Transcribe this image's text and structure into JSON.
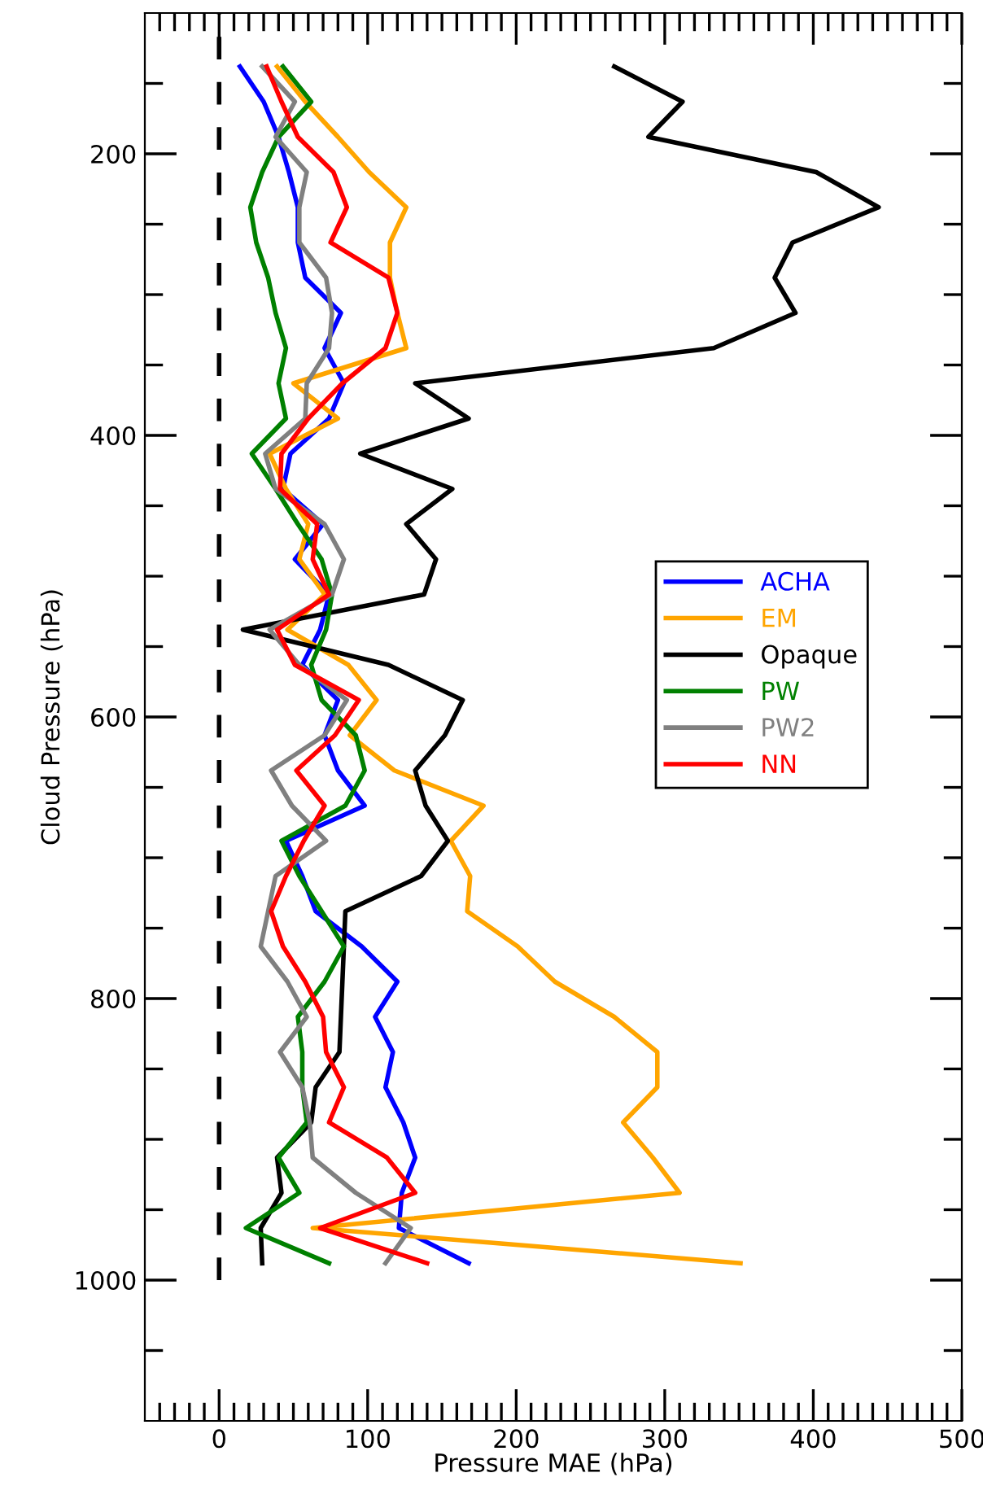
{
  "chart_data": {
    "type": "line",
    "xlabel": "Pressure MAE (hPa)",
    "ylabel": "Cloud Pressure (hPa)",
    "xlim": [
      -50,
      500
    ],
    "ylim": [
      1100,
      100
    ],
    "xticks": [
      {
        "value": -40,
        "label": null
      },
      {
        "value": -30,
        "label": null
      },
      {
        "value": -20,
        "label": null
      },
      {
        "value": -10,
        "label": null
      },
      0,
      {
        "value": 10,
        "label": null
      },
      {
        "value": 20,
        "label": null
      },
      {
        "value": 30,
        "label": null
      },
      {
        "value": 40,
        "label": null
      },
      {
        "value": 50,
        "label": null
      },
      {
        "value": 60,
        "label": null
      },
      {
        "value": 70,
        "label": null
      },
      {
        "value": 80,
        "label": null
      },
      {
        "value": 90,
        "label": null
      },
      100,
      {
        "value": 110,
        "label": null
      },
      {
        "value": 120,
        "label": null
      },
      {
        "value": 130,
        "label": null
      },
      {
        "value": 140,
        "label": null
      },
      {
        "value": 150,
        "label": null
      },
      {
        "value": 160,
        "label": null
      },
      {
        "value": 170,
        "label": null
      },
      {
        "value": 180,
        "label": null
      },
      {
        "value": 190,
        "label": null
      },
      200,
      {
        "value": 210,
        "label": null
      },
      {
        "value": 220,
        "label": null
      },
      {
        "value": 230,
        "label": null
      },
      {
        "value": 240,
        "label": null
      },
      {
        "value": 250,
        "label": null
      },
      {
        "value": 260,
        "label": null
      },
      {
        "value": 270,
        "label": null
      },
      {
        "value": 280,
        "label": null
      },
      {
        "value": 290,
        "label": null
      },
      300,
      {
        "value": 310,
        "label": null
      },
      {
        "value": 320,
        "label": null
      },
      {
        "value": 330,
        "label": null
      },
      {
        "value": 340,
        "label": null
      },
      {
        "value": 350,
        "label": null
      },
      {
        "value": 360,
        "label": null
      },
      {
        "value": 370,
        "label": null
      },
      {
        "value": 380,
        "label": null
      },
      {
        "value": 390,
        "label": null
      },
      400,
      {
        "value": 410,
        "label": null
      },
      {
        "value": 420,
        "label": null
      },
      {
        "value": 430,
        "label": null
      },
      {
        "value": 440,
        "label": null
      },
      {
        "value": 450,
        "label": null
      },
      {
        "value": 460,
        "label": null
      },
      {
        "value": 470,
        "label": null
      },
      {
        "value": 480,
        "label": null
      },
      {
        "value": 490,
        "label": null
      },
      500
    ],
    "yticks": [
      {
        "value": 150,
        "label": null
      },
      200,
      {
        "value": 250,
        "label": null
      },
      {
        "value": 300,
        "label": null
      },
      {
        "value": 350,
        "label": null
      },
      400,
      {
        "value": 450,
        "label": null
      },
      {
        "value": 500,
        "label": null
      },
      {
        "value": 550,
        "label": null
      },
      600,
      {
        "value": 650,
        "label": null
      },
      {
        "value": 700,
        "label": null
      },
      {
        "value": 750,
        "label": null
      },
      800,
      {
        "value": 850,
        "label": null
      },
      {
        "value": 900,
        "label": null
      },
      {
        "value": 950,
        "label": null
      },
      1000,
      {
        "value": 1050,
        "label": null
      }
    ],
    "legend": "center right",
    "ref_lines": [
      {
        "axis": "x",
        "value": 0,
        "color": "#000000",
        "line_style": "dashed"
      }
    ],
    "series": [
      {
        "name": "ACHA",
        "color": "#0000ff",
        "x": [
          14,
          30,
          40,
          47,
          53,
          53,
          58,
          82,
          71,
          84,
          74,
          48,
          43,
          70,
          51,
          74,
          68,
          56,
          80,
          71,
          80,
          98,
          45,
          56,
          65,
          96,
          120,
          105,
          117,
          112,
          124,
          132,
          123,
          121,
          168
        ],
        "values": [
          138,
          163,
          188,
          213,
          238,
          263,
          288,
          313,
          338,
          363,
          388,
          413,
          438,
          463,
          488,
          513,
          538,
          563,
          588,
          613,
          638,
          663,
          688,
          713,
          738,
          763,
          788,
          813,
          838,
          863,
          888,
          913,
          938,
          963,
          988
        ]
      },
      {
        "name": "EM",
        "color": "#ffa500",
        "x": [
          39,
          58,
          80,
          101,
          126,
          115,
          115,
          120,
          126,
          50,
          80,
          34,
          45,
          60,
          54,
          71,
          46,
          87,
          106,
          88,
          118,
          178,
          156,
          169,
          167,
          201,
          226,
          266,
          295,
          295,
          272,
          292,
          310,
          63,
          351
        ],
        "values": [
          138,
          163,
          188,
          213,
          238,
          263,
          288,
          313,
          338,
          363,
          388,
          413,
          438,
          463,
          488,
          513,
          538,
          563,
          588,
          613,
          638,
          663,
          688,
          713,
          738,
          763,
          788,
          813,
          838,
          863,
          888,
          913,
          938,
          963,
          988
        ]
      },
      {
        "name": "Opaque",
        "color": "#000000",
        "x": [
          266,
          312,
          289,
          402,
          444,
          386,
          374,
          388,
          333,
          132,
          168,
          95,
          157,
          126,
          146,
          138,
          16,
          114,
          164,
          152,
          132,
          139,
          154,
          136,
          85,
          84,
          83,
          82,
          81,
          65,
          62,
          39,
          42,
          28,
          29
        ],
        "values": [
          138,
          163,
          188,
          213,
          238,
          263,
          288,
          313,
          338,
          363,
          388,
          413,
          438,
          463,
          488,
          513,
          538,
          563,
          588,
          613,
          638,
          663,
          688,
          713,
          738,
          763,
          788,
          813,
          838,
          863,
          888,
          913,
          938,
          963,
          988
        ]
      },
      {
        "name": "PW",
        "color": "#008000",
        "x": [
          43,
          62,
          40,
          29,
          21,
          25,
          33,
          38,
          45,
          40,
          45,
          22,
          38,
          53,
          69,
          76,
          72,
          62,
          69,
          92,
          98,
          85,
          42,
          54,
          69,
          84,
          71,
          53,
          56,
          56,
          59,
          40,
          54,
          18,
          74
        ],
        "values": [
          138,
          163,
          188,
          213,
          238,
          263,
          288,
          313,
          338,
          363,
          388,
          413,
          438,
          463,
          488,
          513,
          538,
          563,
          588,
          613,
          638,
          663,
          688,
          713,
          738,
          763,
          788,
          813,
          838,
          863,
          888,
          913,
          938,
          963,
          988
        ]
      },
      {
        "name": "PW2",
        "color": "#808080",
        "x": [
          29,
          51,
          38,
          59,
          54,
          54,
          72,
          76,
          74,
          59,
          58,
          31,
          38,
          71,
          84,
          76,
          34,
          54,
          86,
          71,
          35,
          49,
          72,
          38,
          33,
          28,
          46,
          59,
          41,
          56,
          61,
          63,
          92,
          129,
          112
        ],
        "values": [
          138,
          163,
          188,
          213,
          238,
          263,
          288,
          313,
          338,
          363,
          388,
          413,
          438,
          463,
          488,
          513,
          538,
          563,
          588,
          613,
          638,
          663,
          688,
          713,
          738,
          763,
          788,
          813,
          838,
          863,
          888,
          913,
          938,
          963,
          988
        ]
      },
      {
        "name": "NN",
        "color": "#ff0000",
        "x": [
          32,
          42,
          53,
          77,
          86,
          75,
          114,
          120,
          112,
          83,
          60,
          42,
          41,
          66,
          63,
          74,
          39,
          51,
          94,
          78,
          52,
          71,
          57,
          45,
          35,
          43,
          58,
          70,
          72,
          84,
          74,
          113,
          132,
          68,
          140
        ],
        "values": [
          138,
          163,
          188,
          213,
          238,
          263,
          288,
          313,
          338,
          363,
          388,
          413,
          438,
          463,
          488,
          513,
          538,
          563,
          588,
          613,
          638,
          663,
          688,
          713,
          738,
          763,
          788,
          813,
          838,
          863,
          888,
          913,
          938,
          963,
          988
        ]
      }
    ]
  }
}
